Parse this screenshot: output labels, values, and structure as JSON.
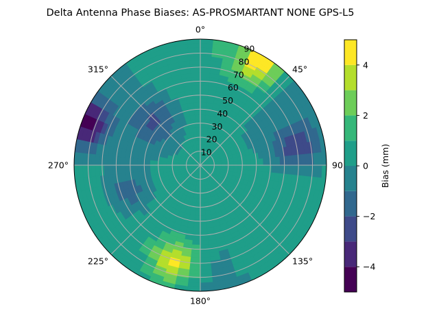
{
  "chart_data": {
    "type": "heatmap",
    "projection": "polar",
    "title": "Delta Antenna Phase Biases: AS-PROSMARTANT  NONE GPS-L5",
    "angular_ticks": [
      "0°",
      "45°",
      "90",
      "135°",
      "180°",
      "225°",
      "270°",
      "315°"
    ],
    "radial_ticks": [
      "10",
      "20",
      "30",
      "40",
      "50",
      "60",
      "70",
      "80",
      "90"
    ],
    "radial_range": [
      0,
      90
    ],
    "grid": true,
    "colorbar": {
      "label": "Bias (mm)",
      "range": [
        -5,
        5
      ],
      "ticks": [
        "4",
        "2",
        "0",
        "−2",
        "−4"
      ],
      "levels": [
        -5,
        -4,
        -3,
        -2,
        -1,
        0,
        1,
        2,
        3,
        4,
        5
      ],
      "colors": [
        "#440154",
        "#482878",
        "#3e4a89",
        "#31688e",
        "#26828e",
        "#1f9e89",
        "#35b779",
        "#6dcd59",
        "#b4de2c",
        "#fde725"
      ]
    },
    "features": [
      {
        "description": "high bias lobe",
        "azimuth": 195,
        "elevation": 72,
        "value": 4.2
      },
      {
        "description": "high bias lobe",
        "azimuth": 30,
        "elevation": 85,
        "value": 4.5
      },
      {
        "description": "low bias band",
        "azimuth": 80,
        "elevation": 70,
        "value": -2.8
      },
      {
        "description": "low bias band",
        "azimuth": 290,
        "elevation": 88,
        "value": -4.6
      },
      {
        "description": "low bias patch",
        "azimuth": 315,
        "elevation": 45,
        "value": -2.2
      },
      {
        "description": "low bias patch",
        "azimuth": 250,
        "elevation": 55,
        "value": -2.1
      }
    ]
  }
}
